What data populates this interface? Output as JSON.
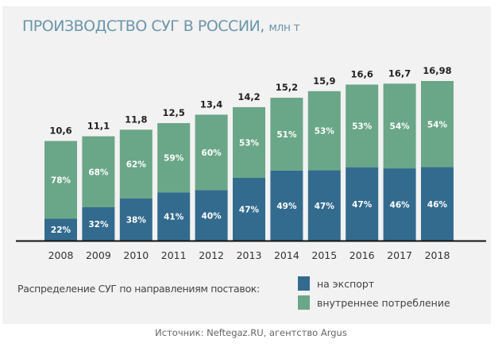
{
  "chart_data": {
    "type": "bar",
    "stacked": true,
    "title": "ПРОИЗВОДСТВО СУГ В РОССИИ",
    "unit": "млн т",
    "categories": [
      "2008",
      "2009",
      "2010",
      "2011",
      "2012",
      "2013",
      "2014",
      "2015",
      "2016",
      "2017",
      "2018"
    ],
    "totals": [
      10.6,
      11.1,
      11.8,
      12.5,
      13.4,
      14.2,
      15.2,
      15.9,
      16.6,
      16.7,
      16.98
    ],
    "total_labels": [
      "10,6",
      "11,1",
      "11,8",
      "12,5",
      "13,4",
      "14,2",
      "15,2",
      "15,9",
      "16,6",
      "16,7",
      "16,98"
    ],
    "series": [
      {
        "name": "на экспорт",
        "color": "#336b8e",
        "values_percent": [
          22,
          32,
          38,
          41,
          40,
          47,
          49,
          47,
          47,
          46,
          46
        ]
      },
      {
        "name": "внутреннее потребление",
        "color": "#6aa688",
        "values_percent": [
          78,
          68,
          62,
          59,
          60,
          53,
          51,
          53,
          53,
          54,
          54
        ]
      }
    ],
    "ylim": [
      0,
      16.98
    ],
    "legend_title": "Распределение СУГ по направлениям поставок:",
    "legend_position": "bottom"
  },
  "source": "Источник: Neftegaz.RU, агентство Argus"
}
